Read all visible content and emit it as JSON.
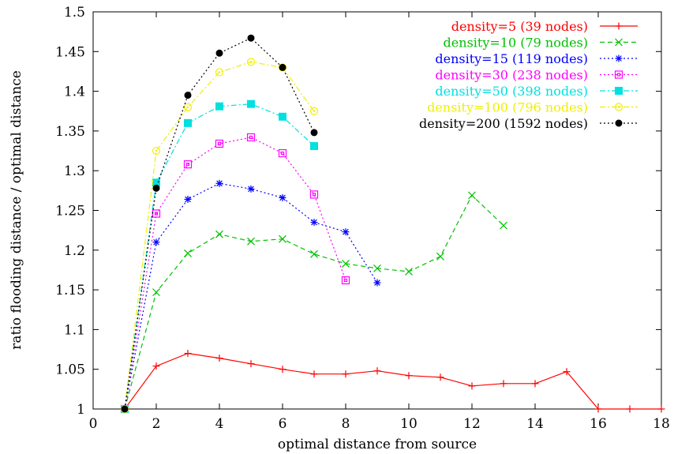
{
  "chart_data": {
    "type": "line",
    "xlabel": "optimal distance from source",
    "ylabel": "ratio flooding distance / optimal distance",
    "xlim": [
      0,
      18
    ],
    "ylim": [
      1,
      1.5
    ],
    "xticks": [
      "0",
      "2",
      "4",
      "6",
      "8",
      "10",
      "12",
      "14",
      "16",
      "18"
    ],
    "yticks": [
      "1",
      "1.05",
      "1.1",
      "1.15",
      "1.2",
      "1.25",
      "1.3",
      "1.35",
      "1.4",
      "1.45",
      "1.5"
    ],
    "grid": false,
    "legend_position": "top-right",
    "series": [
      {
        "name": "density=5 (39 nodes)",
        "color": "#ff0000",
        "dash": "solid",
        "marker": "plus",
        "x": [
          1,
          2,
          3,
          4,
          5,
          6,
          7,
          8,
          9,
          10,
          11,
          12,
          13,
          14,
          15,
          16,
          17,
          18
        ],
        "y": [
          1.0,
          1.054,
          1.07,
          1.064,
          1.057,
          1.05,
          1.044,
          1.044,
          1.048,
          1.042,
          1.04,
          1.029,
          1.032,
          1.032,
          1.047,
          1.0,
          1.0,
          1.0
        ]
      },
      {
        "name": "density=10 (79 nodes)",
        "color": "#00c000",
        "dash": "dashed",
        "marker": "cross",
        "x": [
          1,
          2,
          3,
          4,
          5,
          6,
          7,
          8,
          9,
          10,
          11,
          12,
          13
        ],
        "y": [
          1.0,
          1.147,
          1.196,
          1.22,
          1.211,
          1.214,
          1.195,
          1.183,
          1.177,
          1.173,
          1.192,
          1.269,
          1.231
        ]
      },
      {
        "name": "density=15 (119 nodes)",
        "color": "#0000ff",
        "dash": "dotted",
        "marker": "star",
        "x": [
          1,
          2,
          3,
          4,
          5,
          6,
          7,
          8,
          9
        ],
        "y": [
          1.0,
          1.21,
          1.264,
          1.284,
          1.277,
          1.266,
          1.235,
          1.223,
          1.159
        ]
      },
      {
        "name": "density=30 (238 nodes)",
        "color": "#ff00ff",
        "dash": "dotted",
        "marker": "box",
        "x": [
          1,
          2,
          3,
          4,
          5,
          6,
          7,
          8
        ],
        "y": [
          1.0,
          1.246,
          1.308,
          1.334,
          1.342,
          1.322,
          1.27,
          1.162
        ]
      },
      {
        "name": "density=50 (398 nodes)",
        "color": "#00e0e0",
        "dash": "dashdot",
        "marker": "filled-box",
        "x": [
          1,
          2,
          3,
          4,
          5,
          6,
          7
        ],
        "y": [
          1.0,
          1.285,
          1.36,
          1.381,
          1.384,
          1.368,
          1.331
        ]
      },
      {
        "name": "density=100 (796 nodes)",
        "color": "#f0f000",
        "dash": "dashdot",
        "marker": "circle",
        "x": [
          1,
          2,
          3,
          4,
          5,
          6,
          7
        ],
        "y": [
          1.0,
          1.325,
          1.38,
          1.424,
          1.437,
          1.43,
          1.375
        ]
      },
      {
        "name": "density=200 (1592 nodes)",
        "color": "#000000",
        "dash": "dotted",
        "marker": "filled-circle",
        "x": [
          1,
          2,
          3,
          4,
          5,
          6,
          7
        ],
        "y": [
          1.0,
          1.278,
          1.395,
          1.448,
          1.467,
          1.43,
          1.348
        ]
      }
    ]
  }
}
